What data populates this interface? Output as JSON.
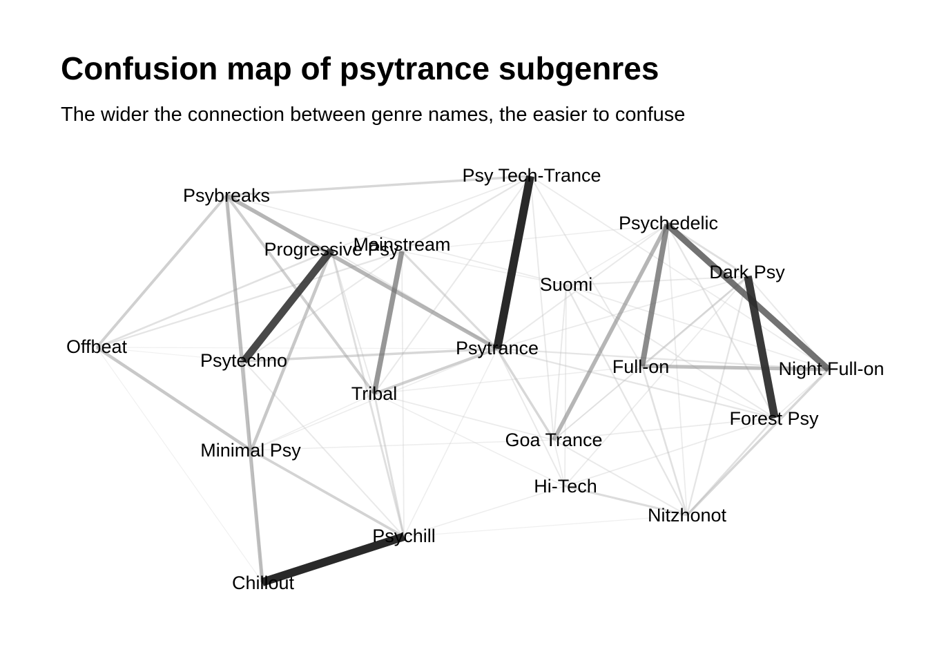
{
  "title": "Confusion map of psytrance subgenres",
  "subtitle": "The wider the connection between genre names, the easier to confuse",
  "nodes": [
    {
      "id": "psybreaks",
      "label": "Psybreaks"
    },
    {
      "id": "progressive",
      "label": "Progressive Psy"
    },
    {
      "id": "mainstream",
      "label": "Mainstream"
    },
    {
      "id": "psytechtrance",
      "label": "Psy Tech-Trance"
    },
    {
      "id": "psychedelic",
      "label": "Psychedelic"
    },
    {
      "id": "darkpsy",
      "label": "Dark Psy"
    },
    {
      "id": "suomi",
      "label": "Suomi"
    },
    {
      "id": "offbeat",
      "label": "Offbeat"
    },
    {
      "id": "psytechno",
      "label": "Psytechno"
    },
    {
      "id": "psytrance",
      "label": "Psytrance"
    },
    {
      "id": "fullon",
      "label": "Full-on"
    },
    {
      "id": "nightfullon",
      "label": "Night Full-on"
    },
    {
      "id": "tribal",
      "label": "Tribal"
    },
    {
      "id": "forestpsy",
      "label": "Forest Psy"
    },
    {
      "id": "goatrance",
      "label": "Goa Trance"
    },
    {
      "id": "minimalpsy",
      "label": "Minimal Psy"
    },
    {
      "id": "hitech",
      "label": "Hi-Tech"
    },
    {
      "id": "nitzhonot",
      "label": "Nitzhonot"
    },
    {
      "id": "psychill",
      "label": "Psychill"
    },
    {
      "id": "chillout",
      "label": "Chillout"
    }
  ],
  "edges": [
    {
      "source": "chillout",
      "target": "psychill",
      "weight": 1.0
    },
    {
      "source": "psytechtrance",
      "target": "psytrance",
      "weight": 1.0
    },
    {
      "source": "darkpsy",
      "target": "forestpsy",
      "weight": 0.95
    },
    {
      "source": "progressive",
      "target": "psytechno",
      "weight": 0.9
    },
    {
      "source": "psychedelic",
      "target": "nightfullon",
      "weight": 0.75
    },
    {
      "source": "psychedelic",
      "target": "fullon",
      "weight": 0.65
    },
    {
      "source": "mainstream",
      "target": "tribal",
      "weight": 0.6
    },
    {
      "source": "psybreaks",
      "target": "psytrance",
      "weight": 0.45
    },
    {
      "source": "psychedelic",
      "target": "goatrance",
      "weight": 0.45
    },
    {
      "source": "psybreaks",
      "target": "chillout",
      "weight": 0.4
    },
    {
      "source": "fullon",
      "target": "nightfullon",
      "weight": 0.4
    },
    {
      "source": "offbeat",
      "target": "minimalpsy",
      "weight": 0.35
    },
    {
      "source": "progressive",
      "target": "minimalpsy",
      "weight": 0.35
    },
    {
      "source": "tribal",
      "target": "psytrance",
      "weight": 0.3
    },
    {
      "source": "psybreaks",
      "target": "offbeat",
      "weight": 0.3
    },
    {
      "source": "psybreaks",
      "target": "tribal",
      "weight": 0.3
    },
    {
      "source": "minimalpsy",
      "target": "psychill",
      "weight": 0.28
    },
    {
      "source": "psytechno",
      "target": "psytrance",
      "weight": 0.25
    },
    {
      "source": "goatrance",
      "target": "psytrance",
      "weight": 0.25
    },
    {
      "source": "nitzhonot",
      "target": "nightfullon",
      "weight": 0.25
    },
    {
      "source": "psybreaks",
      "target": "psytechtrance",
      "weight": 0.25
    },
    {
      "source": "hitech",
      "target": "nitzhonot",
      "weight": 0.22
    },
    {
      "source": "mainstream",
      "target": "psytrance",
      "weight": 0.22
    },
    {
      "source": "progressive",
      "target": "psychill",
      "weight": 0.2
    },
    {
      "source": "darkpsy",
      "target": "fullon",
      "weight": 0.2
    },
    {
      "source": "psychedelic",
      "target": "darkpsy",
      "weight": 0.2
    },
    {
      "source": "tribal",
      "target": "psychill",
      "weight": 0.2
    },
    {
      "source": "offbeat",
      "target": "progressive",
      "weight": 0.18
    },
    {
      "source": "offbeat",
      "target": "mainstream",
      "weight": 0.15
    },
    {
      "source": "fullon",
      "target": "nitzhonot",
      "weight": 0.18
    },
    {
      "source": "forestpsy",
      "target": "nitzhonot",
      "weight": 0.18
    },
    {
      "source": "darkpsy",
      "target": "nitzhonot",
      "weight": 0.15
    },
    {
      "source": "suomi",
      "target": "nitzhonot",
      "weight": 0.15
    },
    {
      "source": "psychedelic",
      "target": "forestpsy",
      "weight": 0.15
    },
    {
      "source": "mainstream",
      "target": "psytechtrance",
      "weight": 0.15
    },
    {
      "source": "psytechtrance",
      "target": "fullon",
      "weight": 0.12
    },
    {
      "source": "psytechtrance",
      "target": "tribal",
      "weight": 0.12
    },
    {
      "source": "psytechtrance",
      "target": "goatrance",
      "weight": 0.12
    },
    {
      "source": "psytechtrance",
      "target": "nightfullon",
      "weight": 0.1
    },
    {
      "source": "psytrance",
      "target": "hitech",
      "weight": 0.12
    },
    {
      "source": "psytrance",
      "target": "nightfullon",
      "weight": 0.15
    },
    {
      "source": "psytrance",
      "target": "forestpsy",
      "weight": 0.15
    },
    {
      "source": "psytrance",
      "target": "psychedelic",
      "weight": 0.12
    },
    {
      "source": "psytechno",
      "target": "minimalpsy",
      "weight": 0.15
    },
    {
      "source": "psytechno",
      "target": "psychill",
      "weight": 0.12
    },
    {
      "source": "psytechno",
      "target": "mainstream",
      "weight": 0.12
    },
    {
      "source": "suomi",
      "target": "darkpsy",
      "weight": 0.12
    },
    {
      "source": "suomi",
      "target": "goatrance",
      "weight": 0.12
    },
    {
      "source": "suomi",
      "target": "hitech",
      "weight": 0.1
    },
    {
      "source": "suomi",
      "target": "psybreaks",
      "weight": 0.1
    },
    {
      "source": "suomi",
      "target": "forestpsy",
      "weight": 0.12
    },
    {
      "source": "goatrance",
      "target": "hitech",
      "weight": 0.1
    },
    {
      "source": "goatrance",
      "target": "nitzhonot",
      "weight": 0.12
    },
    {
      "source": "goatrance",
      "target": "darkpsy",
      "weight": 0.1
    },
    {
      "source": "goatrance",
      "target": "forestpsy",
      "weight": 0.1
    },
    {
      "source": "goatrance",
      "target": "tribal",
      "weight": 0.1
    },
    {
      "source": "goatrance",
      "target": "minimalpsy",
      "weight": 0.08
    },
    {
      "source": "hitech",
      "target": "forestpsy",
      "weight": 0.1
    },
    {
      "source": "hitech",
      "target": "darkpsy",
      "weight": 0.1
    },
    {
      "source": "hitech",
      "target": "psychill",
      "weight": 0.08
    },
    {
      "source": "hitech",
      "target": "tribal",
      "weight": 0.08
    },
    {
      "source": "minimalpsy",
      "target": "tribal",
      "weight": 0.08
    },
    {
      "source": "minimalpsy",
      "target": "psytrance",
      "weight": 0.08
    },
    {
      "source": "minimalpsy",
      "target": "chillout",
      "weight": 0.08
    },
    {
      "source": "offbeat",
      "target": "chillout",
      "weight": 0.05
    },
    {
      "source": "offbeat",
      "target": "psytechno",
      "weight": 0.05
    },
    {
      "source": "offbeat",
      "target": "psytrance",
      "weight": 0.05
    },
    {
      "source": "psychill",
      "target": "nitzhonot",
      "weight": 0.06
    },
    {
      "source": "psychill",
      "target": "psytrance",
      "weight": 0.08
    },
    {
      "source": "fullon",
      "target": "forestpsy",
      "weight": 0.1
    },
    {
      "source": "fullon",
      "target": "tribal",
      "weight": 0.08
    },
    {
      "source": "fullon",
      "target": "goatrance",
      "weight": 0.1
    },
    {
      "source": "nightfullon",
      "target": "darkpsy",
      "weight": 0.12
    },
    {
      "source": "nightfullon",
      "target": "forestpsy",
      "weight": 0.1
    },
    {
      "source": "nightfullon",
      "target": "suomi",
      "weight": 0.1
    },
    {
      "source": "psychedelic",
      "target": "nitzhonot",
      "weight": 0.1
    },
    {
      "source": "psychedelic",
      "target": "suomi",
      "weight": 0.08
    },
    {
      "source": "psychedelic",
      "target": "mainstream",
      "weight": 0.08
    },
    {
      "source": "progressive",
      "target": "tribal",
      "weight": 0.12
    },
    {
      "source": "progressive",
      "target": "psytrance",
      "weight": 0.12
    },
    {
      "source": "progressive",
      "target": "psytechtrance",
      "weight": 0.1
    },
    {
      "source": "mainstream",
      "target": "suomi",
      "weight": 0.08
    },
    {
      "source": "mainstream",
      "target": "psychill",
      "weight": 0.1
    },
    {
      "source": "psybreaks",
      "target": "psytechno",
      "weight": 0.1
    },
    {
      "source": "darkpsy",
      "target": "psytrance",
      "weight": 0.1
    }
  ]
}
